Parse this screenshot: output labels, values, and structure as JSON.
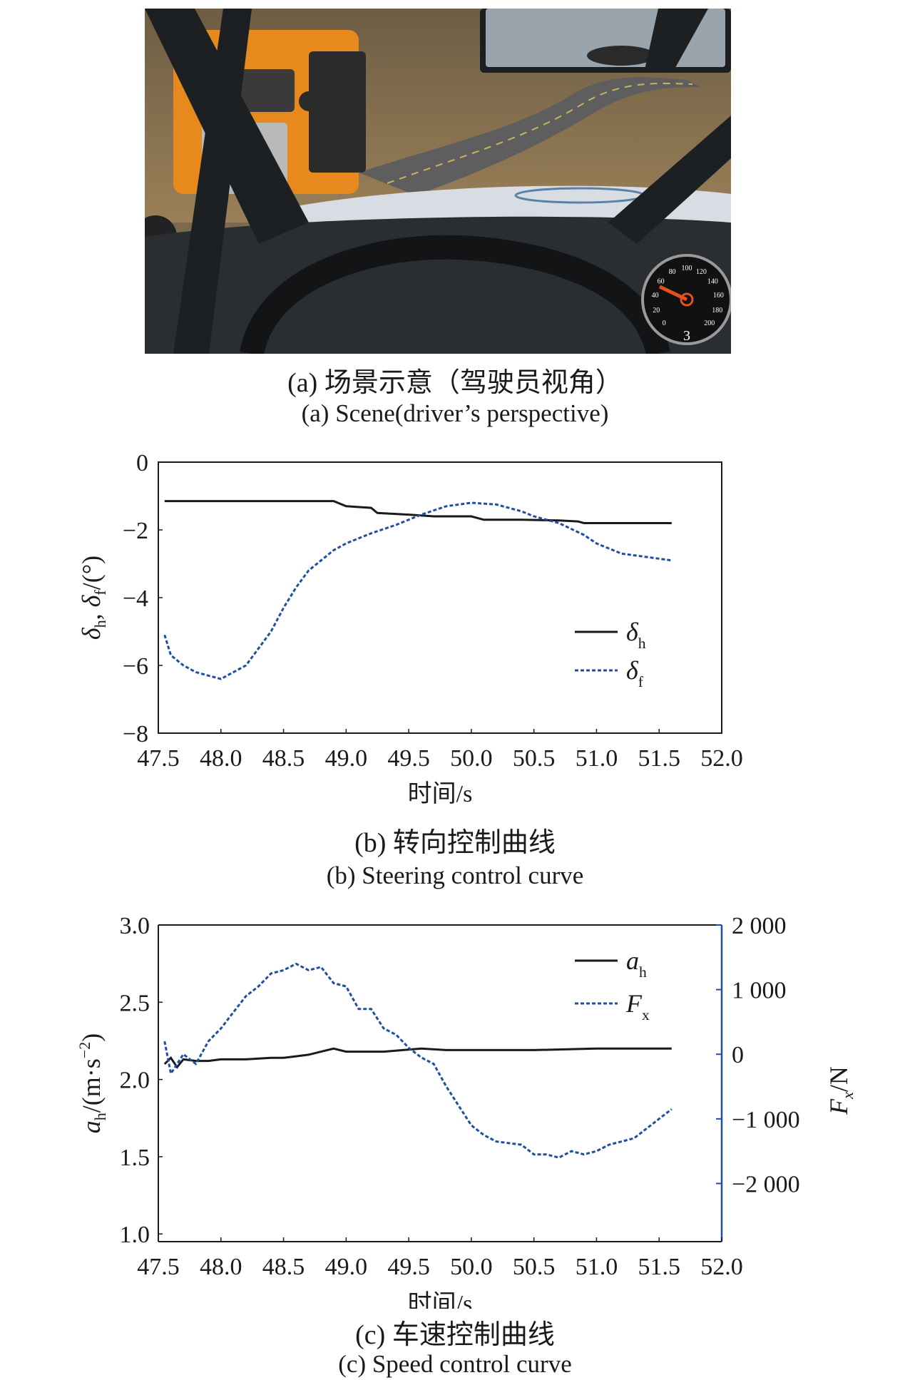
{
  "figure": {
    "panel_a": {
      "caption_zh": "(a) 场景示意（驾驶员视角）",
      "caption_en": "(a) Scene(driver’s perspective)",
      "speedometer_ticks": [
        "0",
        "20",
        "40",
        "60",
        "80",
        "100",
        "120",
        "140",
        "160",
        "180",
        "200"
      ],
      "gear": "3",
      "colors": {
        "sky": "#6d5d45",
        "ground": "#9a8058",
        "road": "#5e5e5e",
        "truck": "#e8891e",
        "dashboard": "#2a2e33",
        "pillar": "#1d2023"
      }
    },
    "panel_b": {
      "caption_zh": "(b) 转向控制曲线",
      "caption_en": "(b) Steering control curve"
    },
    "panel_c": {
      "caption_zh": "(c) 车速控制曲线",
      "caption_en": "(c) Speed control curve"
    }
  },
  "chart_data": [
    {
      "type": "line",
      "panel": "b",
      "xlabel": "时间/s",
      "ylabel_parts": [
        "δ",
        "h",
        ", ",
        "δ",
        "f",
        "/(°)"
      ],
      "xlim": [
        47.5,
        52.0
      ],
      "ylim": [
        -8,
        0
      ],
      "x_ticks": [
        "47.5",
        "48.0",
        "48.5",
        "49.0",
        "49.5",
        "50.0",
        "50.5",
        "51.0",
        "51.5",
        "52.0"
      ],
      "y_ticks": [
        "0",
        "−2",
        "−4",
        "−6",
        "−8"
      ],
      "legend_position": "right",
      "colors": {
        "delta_h": "#1a1a1a",
        "delta_f": "#1f4fa0"
      },
      "series": [
        {
          "name": "δh",
          "name_sym": "δ",
          "name_sub": "h",
          "style": "solid",
          "x": [
            47.55,
            48.0,
            48.5,
            48.9,
            49.0,
            49.2,
            49.25,
            49.5,
            49.7,
            50.0,
            50.1,
            50.4,
            50.7,
            50.85,
            50.9,
            51.2,
            51.6
          ],
          "y": [
            -1.15,
            -1.15,
            -1.15,
            -1.15,
            -1.3,
            -1.35,
            -1.5,
            -1.55,
            -1.6,
            -1.6,
            -1.7,
            -1.7,
            -1.72,
            -1.75,
            -1.8,
            -1.8,
            -1.8
          ]
        },
        {
          "name": "δf",
          "name_sym": "δ",
          "name_sub": "f",
          "style": "dashed",
          "x": [
            47.55,
            47.6,
            47.7,
            47.8,
            47.9,
            48.0,
            48.1,
            48.2,
            48.3,
            48.4,
            48.5,
            48.6,
            48.7,
            48.8,
            48.9,
            49.0,
            49.2,
            49.4,
            49.6,
            49.8,
            49.9,
            50.0,
            50.2,
            50.4,
            50.5,
            50.7,
            50.9,
            51.0,
            51.2,
            51.4,
            51.6
          ],
          "y": [
            -5.1,
            -5.7,
            -6.0,
            -6.2,
            -6.3,
            -6.4,
            -6.2,
            -6.0,
            -5.5,
            -5.0,
            -4.3,
            -3.7,
            -3.2,
            -2.9,
            -2.6,
            -2.4,
            -2.1,
            -1.85,
            -1.55,
            -1.3,
            -1.25,
            -1.2,
            -1.25,
            -1.45,
            -1.6,
            -1.8,
            -2.15,
            -2.4,
            -2.7,
            -2.8,
            -2.9
          ]
        }
      ]
    },
    {
      "type": "line",
      "panel": "c",
      "xlabel": "时间/s",
      "ylabel_left_parts": [
        "a",
        "h",
        "/(m·s",
        "−2",
        ")"
      ],
      "ylabel_right_parts": [
        "F",
        "x",
        "/N"
      ],
      "xlim": [
        47.5,
        52.0
      ],
      "ylim_left": [
        0.95,
        3.0
      ],
      "ylim_right": [
        -2900,
        2000
      ],
      "x_ticks": [
        "47.5",
        "48.0",
        "48.5",
        "49.0",
        "49.5",
        "50.0",
        "50.5",
        "51.0",
        "51.5",
        "52.0"
      ],
      "y_ticks_left": [
        {
          "v": 3.0,
          "label": "3.0"
        },
        {
          "v": 2.5,
          "label": "2.5"
        },
        {
          "v": 2.0,
          "label": "2.0"
        },
        {
          "v": 1.5,
          "label": "1.5"
        },
        {
          "v": 1.0,
          "label": "1.0"
        }
      ],
      "y_ticks_right": [
        {
          "v": 2000,
          "label": "2 000"
        },
        {
          "v": 1000,
          "label": "1 000"
        },
        {
          "v": 0,
          "label": "0"
        },
        {
          "v": -1000,
          "label": "−1 000"
        },
        {
          "v": -2000,
          "label": "−2 000"
        }
      ],
      "legend_position": "top-right",
      "colors": {
        "a_h": "#1a1a1a",
        "F_x": "#1f4fa0",
        "right_axis": "#1f4fa0"
      },
      "series": [
        {
          "name": "ah",
          "name_sym": "a",
          "name_sub": "h",
          "style": "solid",
          "axis": "left",
          "x": [
            47.55,
            47.6,
            47.65,
            47.7,
            47.8,
            47.9,
            48.0,
            48.2,
            48.4,
            48.5,
            48.6,
            48.7,
            48.8,
            48.9,
            49.0,
            49.3,
            49.6,
            49.8,
            50.0,
            50.5,
            51.0,
            51.6
          ],
          "y": [
            2.1,
            2.14,
            2.08,
            2.13,
            2.12,
            2.12,
            2.13,
            2.13,
            2.14,
            2.14,
            2.15,
            2.16,
            2.18,
            2.2,
            2.18,
            2.18,
            2.2,
            2.19,
            2.19,
            2.19,
            2.2,
            2.2
          ]
        },
        {
          "name": "Fx",
          "name_sym": "F",
          "name_sub": "x",
          "style": "dashed",
          "axis": "right",
          "x": [
            47.55,
            47.6,
            47.7,
            47.8,
            47.9,
            48.0,
            48.1,
            48.2,
            48.3,
            48.4,
            48.5,
            48.6,
            48.7,
            48.8,
            48.9,
            49.0,
            49.1,
            49.2,
            49.3,
            49.4,
            49.5,
            49.6,
            49.7,
            49.8,
            49.9,
            50.0,
            50.1,
            50.2,
            50.4,
            50.5,
            50.6,
            50.7,
            50.8,
            50.9,
            51.0,
            51.1,
            51.2,
            51.3,
            51.4,
            51.5,
            51.6
          ],
          "y": [
            200,
            -300,
            0,
            -150,
            200,
            400,
            650,
            900,
            1050,
            1250,
            1300,
            1400,
            1300,
            1350,
            1100,
            1050,
            700,
            700,
            400,
            300,
            100,
            -50,
            -150,
            -500,
            -800,
            -1100,
            -1250,
            -1350,
            -1400,
            -1550,
            -1550,
            -1600,
            -1500,
            -1550,
            -1500,
            -1400,
            -1350,
            -1300,
            -1150,
            -1000,
            -850
          ]
        }
      ]
    }
  ]
}
